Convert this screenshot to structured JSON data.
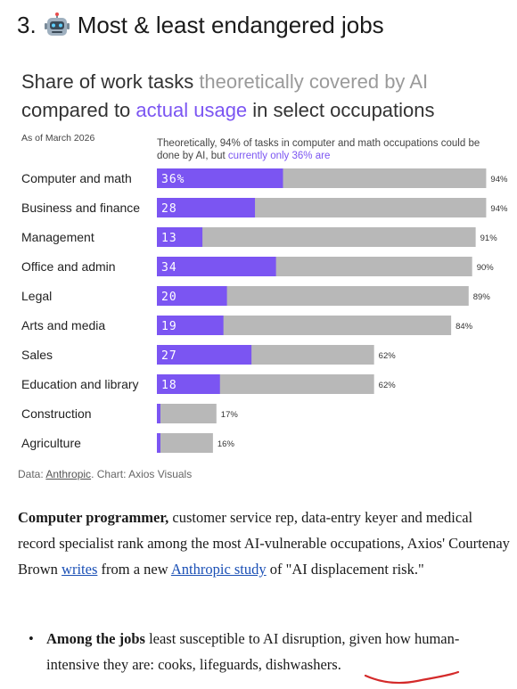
{
  "section": {
    "number": "3.",
    "icon": "robot-icon",
    "heading": "Most & least endangered jobs"
  },
  "chart_title": {
    "part1": "Share of work tasks ",
    "part2": "theoretically covered by AI",
    "part3": "compared to ",
    "part4": "actual usage",
    "part5": " in select occupations"
  },
  "as_of": "As of March 2026",
  "annotation": {
    "text": "Theoretically, 94% of tasks in computer and math occupations could be done by AI, but ",
    "highlight": "currently only 36% are"
  },
  "source": {
    "prefix": "Data: ",
    "link": "Anthropic",
    "suffix": ". Chart: Axios Visuals"
  },
  "colors": {
    "actual": "#7b55f2",
    "theoretical": "#b8b8b8",
    "grey_text": "#9a9a9a"
  },
  "chart_data": {
    "type": "bar",
    "orientation": "horizontal",
    "categories": [
      "Computer and math",
      "Business and finance",
      "Management",
      "Office and admin",
      "Legal",
      "Arts and media",
      "Sales",
      "Education and library",
      "Construction",
      "Agriculture"
    ],
    "series": [
      {
        "name": "actual usage",
        "values": [
          36,
          28,
          13,
          34,
          20,
          19,
          27,
          18,
          1,
          1
        ],
        "labels": [
          "36%",
          "28",
          "13",
          "34",
          "20",
          "19",
          "27",
          "18",
          "",
          ""
        ]
      },
      {
        "name": "theoretically covered by AI",
        "values": [
          94,
          94,
          91,
          90,
          89,
          84,
          62,
          62,
          17,
          16
        ],
        "labels": [
          "94%",
          "94%",
          "91%",
          "90%",
          "89%",
          "84%",
          "62%",
          "62%",
          "17%",
          "16%"
        ]
      }
    ],
    "xlim": [
      0,
      100
    ],
    "grid": false
  },
  "article": {
    "bold_lead": "Computer programmer,",
    "text1": " customer service rep, data-entry keyer and medical record specialist rank among the most AI-vulnerable occupations, Axios' Courtenay Brown ",
    "link1": "writes",
    "text2": " from a new ",
    "link2": "Anthropic study",
    "text3": " of \"AI displacement risk.\""
  },
  "bullet": {
    "bold_lead": "Among the jobs",
    "text": " least susceptible to AI disruption, given how human-intensive they are: cooks, lifeguards, dishwashers."
  }
}
